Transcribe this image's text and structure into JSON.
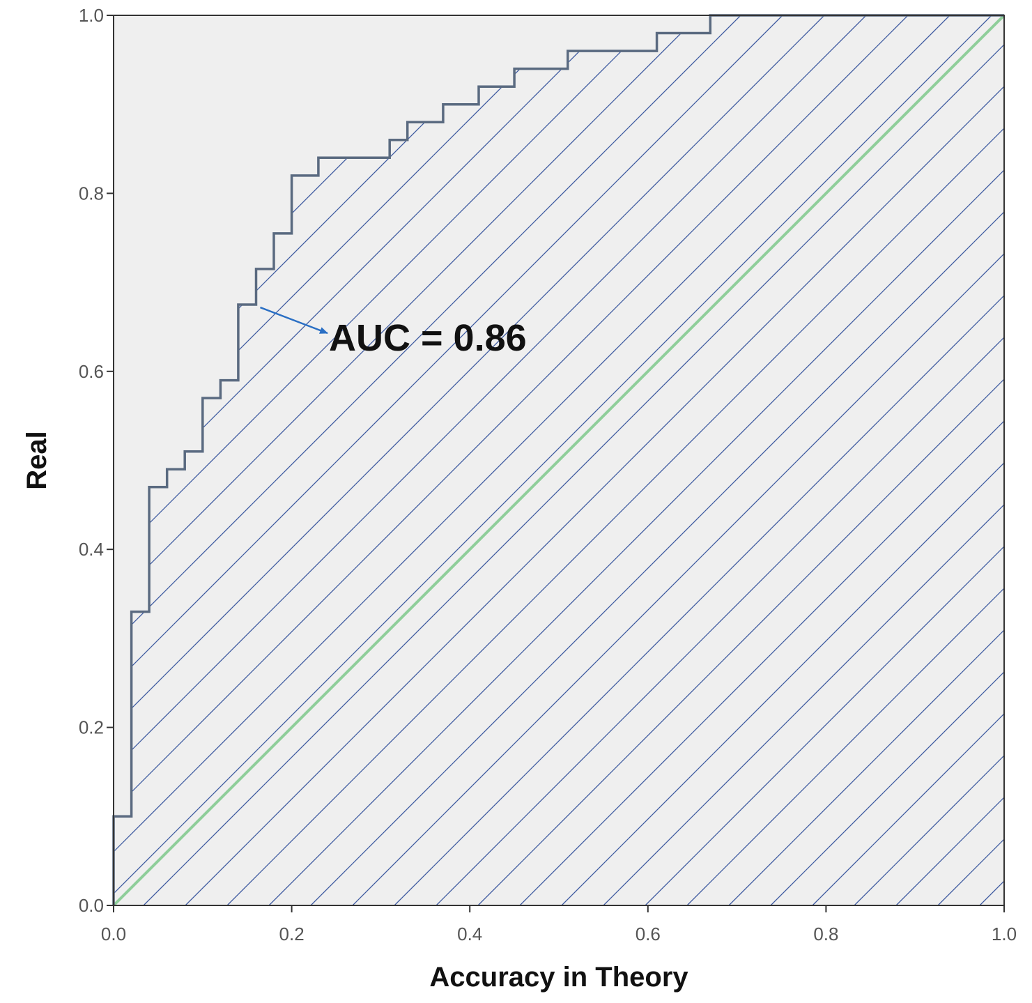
{
  "chart_data": {
    "type": "line",
    "xlabel": "Accuracy in Theory",
    "ylabel": "Real",
    "xlim": [
      0,
      1
    ],
    "ylim": [
      0,
      1
    ],
    "x_ticks": [
      "0.0",
      "0.2",
      "0.4",
      "0.6",
      "0.8",
      "1.0"
    ],
    "y_ticks": [
      "0.0",
      "0.2",
      "0.4",
      "0.6",
      "0.8",
      "1.0"
    ],
    "grid": false,
    "area_under_curve_fill": "diagonal-hatch",
    "annotation": {
      "text": "AUC = 0.86",
      "points_to": [
        0.16,
        0.675
      ]
    },
    "series": [
      {
        "kind": "roc-curve",
        "color": "#5a6a80",
        "points": [
          [
            0.0,
            0.0
          ],
          [
            0.0,
            0.1
          ],
          [
            0.02,
            0.1
          ],
          [
            0.02,
            0.33
          ],
          [
            0.04,
            0.33
          ],
          [
            0.04,
            0.47
          ],
          [
            0.06,
            0.47
          ],
          [
            0.06,
            0.49
          ],
          [
            0.08,
            0.49
          ],
          [
            0.08,
            0.51
          ],
          [
            0.1,
            0.51
          ],
          [
            0.1,
            0.57
          ],
          [
            0.12,
            0.57
          ],
          [
            0.12,
            0.59
          ],
          [
            0.14,
            0.59
          ],
          [
            0.14,
            0.675
          ],
          [
            0.16,
            0.675
          ],
          [
            0.16,
            0.715
          ],
          [
            0.18,
            0.715
          ],
          [
            0.18,
            0.755
          ],
          [
            0.2,
            0.755
          ],
          [
            0.2,
            0.82
          ],
          [
            0.23,
            0.82
          ],
          [
            0.23,
            0.84
          ],
          [
            0.31,
            0.84
          ],
          [
            0.31,
            0.86
          ],
          [
            0.33,
            0.86
          ],
          [
            0.33,
            0.88
          ],
          [
            0.37,
            0.88
          ],
          [
            0.37,
            0.9
          ],
          [
            0.41,
            0.9
          ],
          [
            0.41,
            0.92
          ],
          [
            0.45,
            0.92
          ],
          [
            0.45,
            0.94
          ],
          [
            0.51,
            0.94
          ],
          [
            0.51,
            0.96
          ],
          [
            0.61,
            0.96
          ],
          [
            0.61,
            0.98
          ],
          [
            0.67,
            0.98
          ],
          [
            0.67,
            1.0
          ],
          [
            1.0,
            1.0
          ]
        ]
      },
      {
        "kind": "reference-line",
        "color": "#8fce9a",
        "points": [
          [
            0,
            0
          ],
          [
            1,
            1
          ]
        ]
      }
    ]
  },
  "colors": {
    "plot_background": "#efefef",
    "hatch": "#3d5aa0",
    "arrow": "#2a6fc4",
    "axis": "#333333"
  }
}
